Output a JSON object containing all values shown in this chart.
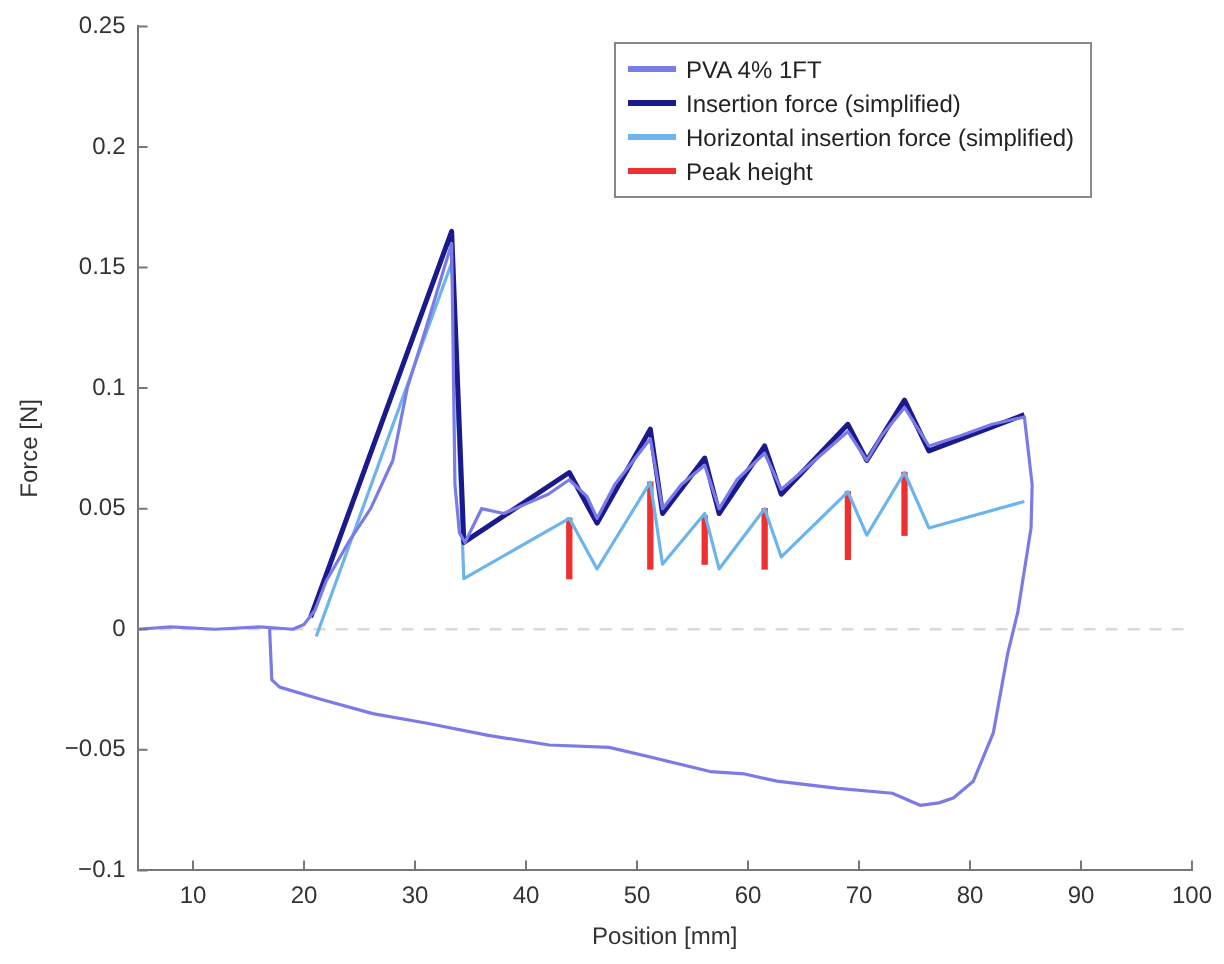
{
  "chart_data": {
    "type": "line",
    "xlabel": "Position [mm]",
    "ylabel": "Force [N]",
    "xlim": [
      5,
      100
    ],
    "xticks": [
      10,
      20,
      30,
      40,
      50,
      60,
      70,
      80,
      90,
      100
    ],
    "ylim": [
      -0.1,
      0.25
    ],
    "yticks": [
      {
        "value": -0.1,
        "label": "−0.1"
      },
      {
        "value": -0.05,
        "label": "−0.05"
      },
      0,
      0.05,
      0.1,
      0.15,
      0.2,
      0.25
    ],
    "grid": false,
    "legend": "top right",
    "marker": "none",
    "ref_lines": [
      {
        "axis": "y",
        "value": 0,
        "color": "#d9d9d9",
        "line_style": "dashed"
      }
    ],
    "series": [
      {
        "name": "PVA 4% 1FT",
        "color": "#7b7be8",
        "type": "line",
        "x": [
          5,
          8,
          12,
          16,
          19,
          20,
          21,
          22,
          24,
          26,
          28,
          29.3,
          31,
          33.3,
          33.6,
          34,
          34.5,
          36,
          38,
          40,
          42,
          43.9,
          45.5,
          46.4,
          48,
          51.2,
          52.3,
          54,
          56.1,
          57.4,
          59,
          61.5,
          63,
          66,
          69,
          70.7,
          72,
          74.1,
          76.3,
          79,
          82,
          84.9,
          85.6,
          85.5,
          84.3,
          83.4,
          82.1,
          80.3,
          78.5,
          77.2,
          75.5,
          73,
          68.1,
          62.6,
          59.7,
          56.6,
          51.2,
          47.5,
          42.1,
          36.6,
          31.1,
          26.2,
          21.5,
          17.8,
          17.1,
          16.9
        ],
        "values": [
          0,
          0.001,
          0,
          0.001,
          0,
          0.002,
          0.008,
          0.02,
          0.036,
          0.05,
          0.07,
          0.1,
          0.125,
          0.16,
          0.06,
          0.04,
          0.036,
          0.05,
          0.048,
          0.052,
          0.056,
          0.062,
          0.055,
          0.046,
          0.06,
          0.079,
          0.05,
          0.06,
          0.068,
          0.05,
          0.062,
          0.073,
          0.058,
          0.07,
          0.082,
          0.07,
          0.08,
          0.092,
          0.076,
          0.08,
          0.085,
          0.088,
          0.06,
          0.042,
          0.007,
          -0.01,
          -0.043,
          -0.063,
          -0.07,
          -0.072,
          -0.073,
          -0.068,
          -0.066,
          -0.063,
          -0.06,
          -0.059,
          -0.053,
          -0.049,
          -0.048,
          -0.044,
          -0.039,
          -0.035,
          -0.029,
          -0.024,
          -0.021,
          0
        ]
      },
      {
        "name": "Insertion force (simplified)",
        "color": "#1a1a8c",
        "type": "line",
        "x": [
          20.6,
          33.3,
          34.4,
          43.9,
          46.4,
          51.2,
          52.3,
          56.1,
          57.4,
          61.5,
          63,
          69,
          70.7,
          74.1,
          76.3,
          84.9
        ],
        "values": [
          0.005,
          0.165,
          0.036,
          0.065,
          0.044,
          0.083,
          0.048,
          0.071,
          0.048,
          0.076,
          0.056,
          0.085,
          0.07,
          0.095,
          0.074,
          0.089
        ]
      },
      {
        "name": "Horizontal insertion force (simplified)",
        "color": "#6cb4ec",
        "type": "line",
        "x": [
          21.1,
          33.3,
          34.4,
          43.9,
          46.4,
          51.2,
          52.3,
          56.1,
          57.4,
          61.5,
          63,
          69,
          70.7,
          74.1,
          76.3,
          84.9
        ],
        "values": [
          -0.003,
          0.152,
          0.021,
          0.046,
          0.025,
          0.061,
          0.027,
          0.048,
          0.025,
          0.05,
          0.03,
          0.057,
          0.039,
          0.065,
          0.042,
          0.053
        ]
      },
      {
        "name": "Peak height",
        "color": "#ee3030",
        "type": "bar",
        "x": [
          43.9,
          51.2,
          56.1,
          61.5,
          69,
          74.1
        ],
        "base": [
          0.021,
          0.025,
          0.027,
          0.025,
          0.029,
          0.039
        ],
        "values": [
          0.025,
          0.036,
          0.02,
          0.025,
          0.028,
          0.026
        ]
      }
    ]
  }
}
